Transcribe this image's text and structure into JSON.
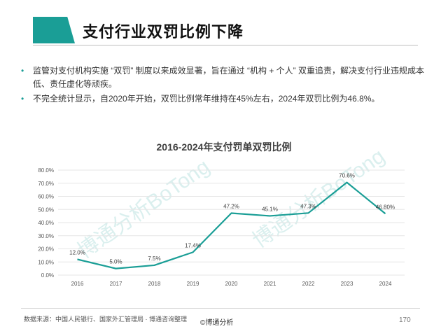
{
  "header": {
    "title": "支付行业双罚比例下降",
    "accent_color": "#1a9e96"
  },
  "bullets": [
    "监管对支付机构实施 “双罚” 制度以来成效显著，旨在通过 “机构 + 个人” 双重追责，解决支付行业违规成本低、责任虚化等顽疾。",
    "不完全统计显示，自2020年开始，双罚比例常年维持在45%左右，2024年双罚比例为46.8%。"
  ],
  "chart_data": {
    "type": "line",
    "title": "2016-2024年支付罚单双罚比例",
    "categories": [
      "2016",
      "2017",
      "2018",
      "2019",
      "2020",
      "2021",
      "2022",
      "2023",
      "2024"
    ],
    "values": [
      12.0,
      5.0,
      7.5,
      17.4,
      47.2,
      45.1,
      47.3,
      70.6,
      46.8
    ],
    "data_labels": [
      "12.0%",
      "5.0%",
      "7.5%",
      "17.4%",
      "47.2%",
      "45.1%",
      "47.3%",
      "70.6%",
      "46.80%"
    ],
    "yticks": [
      "0.0%",
      "10.0%",
      "20.0%",
      "30.0%",
      "40.0%",
      "50.0%",
      "60.0%",
      "70.0%",
      "80.0%"
    ],
    "ylim": [
      0,
      80
    ],
    "xlabel": "",
    "ylabel": "",
    "grid": true,
    "line_color": "#1a9e96",
    "watermark": "博通分析BoTong"
  },
  "footer": {
    "source": "数据来源：中国人民银行、国家外汇管理局 · 博通咨询整理",
    "copyright": "©博通分析",
    "page": "170"
  }
}
